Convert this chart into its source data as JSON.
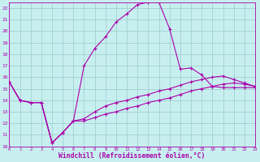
{
  "background_color": "#c8eff0",
  "grid_color": "#a0d0d0",
  "line_color": "#aa00aa",
  "xlabel": "Windchill (Refroidissement éolien,°C)",
  "xlabel_fontsize": 5.8,
  "x_min": 0,
  "x_max": 23,
  "y_min": 10,
  "y_max": 22.5,
  "curve1_x": [
    0,
    1,
    2,
    3,
    4,
    5,
    6,
    7,
    8,
    9,
    10,
    11,
    12,
    13,
    14,
    15,
    16,
    17,
    18,
    19,
    20,
    21,
    22,
    23
  ],
  "curve1_y": [
    15.6,
    14.0,
    13.8,
    13.8,
    10.3,
    11.2,
    12.2,
    17.0,
    18.5,
    19.5,
    20.8,
    21.5,
    22.3,
    22.5,
    22.5,
    20.2,
    16.7,
    16.8,
    16.2,
    15.2,
    15.1,
    15.1,
    15.1,
    15.1
  ],
  "curve2_x": [
    0,
    1,
    2,
    3,
    4,
    5,
    6,
    7,
    8,
    9,
    10,
    11,
    12,
    13,
    14,
    15,
    16,
    17,
    18,
    19,
    20,
    21,
    22,
    23
  ],
  "curve2_y": [
    15.6,
    14.0,
    13.8,
    13.8,
    10.3,
    11.2,
    12.2,
    12.4,
    13.0,
    13.5,
    13.8,
    14.0,
    14.3,
    14.5,
    14.8,
    15.0,
    15.3,
    15.6,
    15.8,
    16.0,
    16.1,
    15.8,
    15.5,
    15.2
  ],
  "curve3_x": [
    0,
    1,
    2,
    3,
    4,
    5,
    6,
    7,
    8,
    9,
    10,
    11,
    12,
    13,
    14,
    15,
    16,
    17,
    18,
    19,
    20,
    21,
    22,
    23
  ],
  "curve3_y": [
    15.6,
    14.0,
    13.8,
    13.8,
    10.3,
    11.2,
    12.2,
    12.2,
    12.5,
    12.8,
    13.0,
    13.3,
    13.5,
    13.8,
    14.0,
    14.2,
    14.5,
    14.8,
    15.0,
    15.2,
    15.4,
    15.5,
    15.4,
    15.2
  ],
  "ytick_vals": [
    10,
    11,
    12,
    13,
    14,
    15,
    16,
    17,
    18,
    19,
    20,
    21,
    22
  ]
}
